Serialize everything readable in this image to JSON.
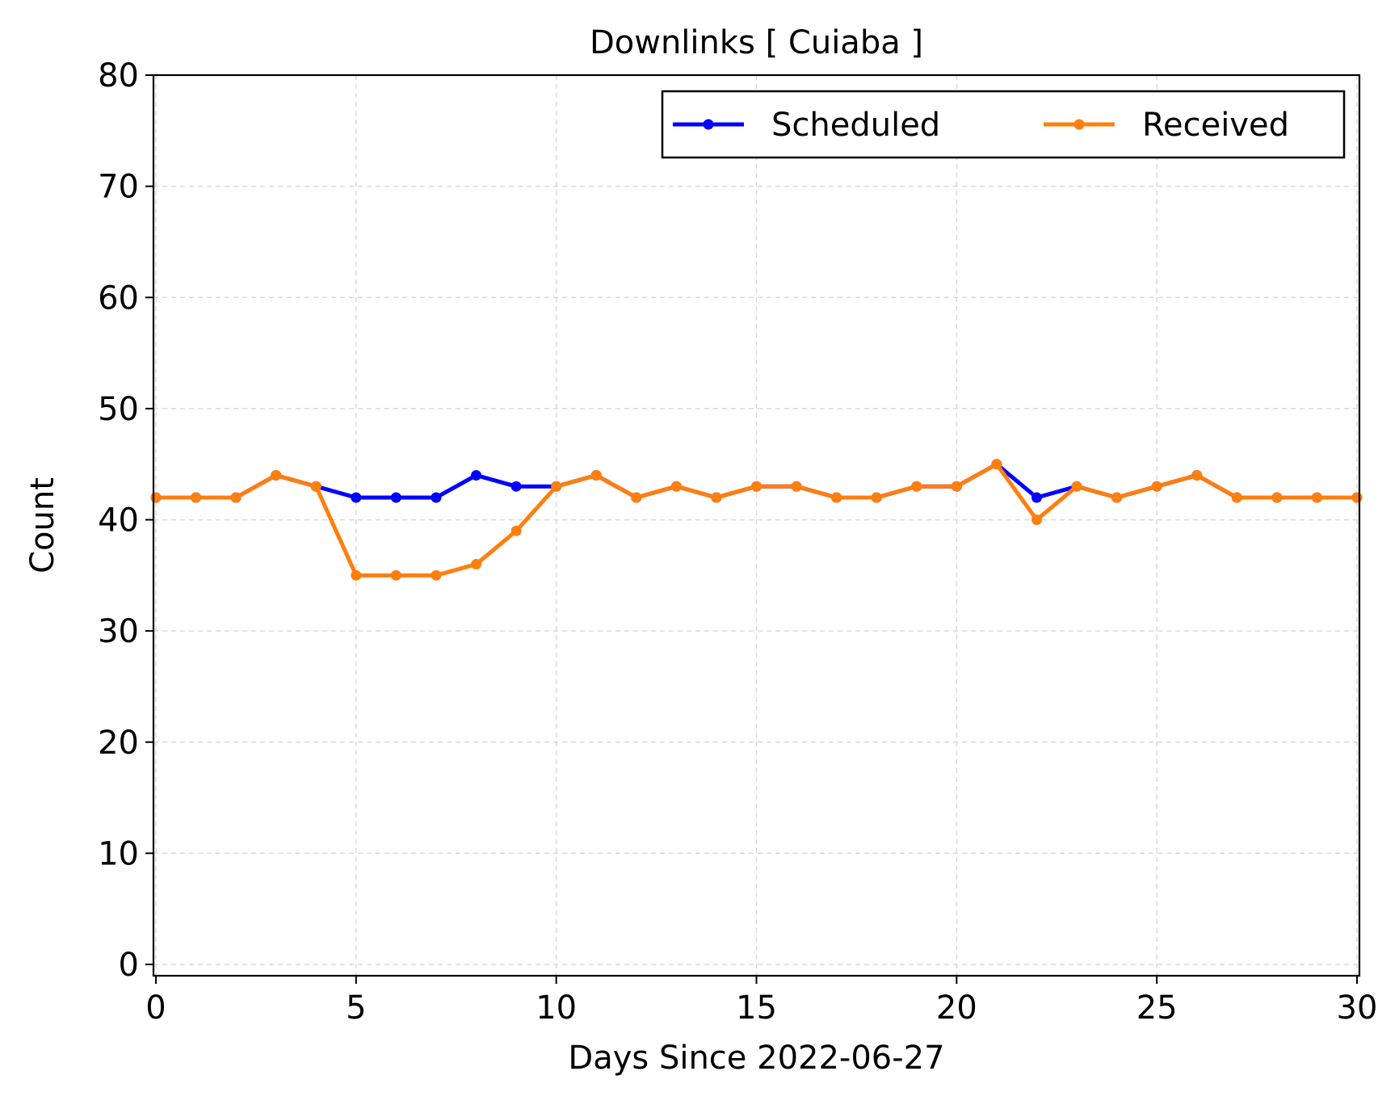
{
  "chart_data": {
    "type": "line",
    "title": "Downlinks [ Cuiaba ]",
    "xlabel": "Days Since 2022-06-27",
    "ylabel": "Count",
    "xlim": [
      0,
      30
    ],
    "ylim": [
      0,
      80
    ],
    "xticks": [
      0,
      5,
      10,
      15,
      20,
      25,
      30
    ],
    "yticks": [
      0,
      10,
      20,
      30,
      40,
      50,
      60,
      70,
      80
    ],
    "grid": true,
    "legend_position": "top-right",
    "x": [
      0,
      1,
      2,
      3,
      4,
      5,
      6,
      7,
      8,
      9,
      10,
      11,
      12,
      13,
      14,
      15,
      16,
      17,
      18,
      19,
      20,
      21,
      22,
      23,
      24,
      25,
      26,
      27,
      28,
      29,
      30
    ],
    "series": [
      {
        "name": "Scheduled",
        "color": "#0000ff",
        "values": [
          42,
          42,
          42,
          44,
          43,
          42,
          42,
          42,
          44,
          43,
          43,
          44,
          42,
          43,
          42,
          43,
          43,
          42,
          42,
          43,
          43,
          45,
          42,
          43,
          42,
          43,
          44,
          42,
          42,
          42,
          42
        ]
      },
      {
        "name": "Received",
        "color": "#ff7f0e",
        "values": [
          42,
          42,
          42,
          44,
          43,
          35,
          35,
          35,
          36,
          39,
          43,
          44,
          42,
          43,
          42,
          43,
          43,
          42,
          42,
          43,
          43,
          45,
          40,
          43,
          42,
          43,
          44,
          42,
          42,
          42,
          42
        ]
      }
    ]
  }
}
